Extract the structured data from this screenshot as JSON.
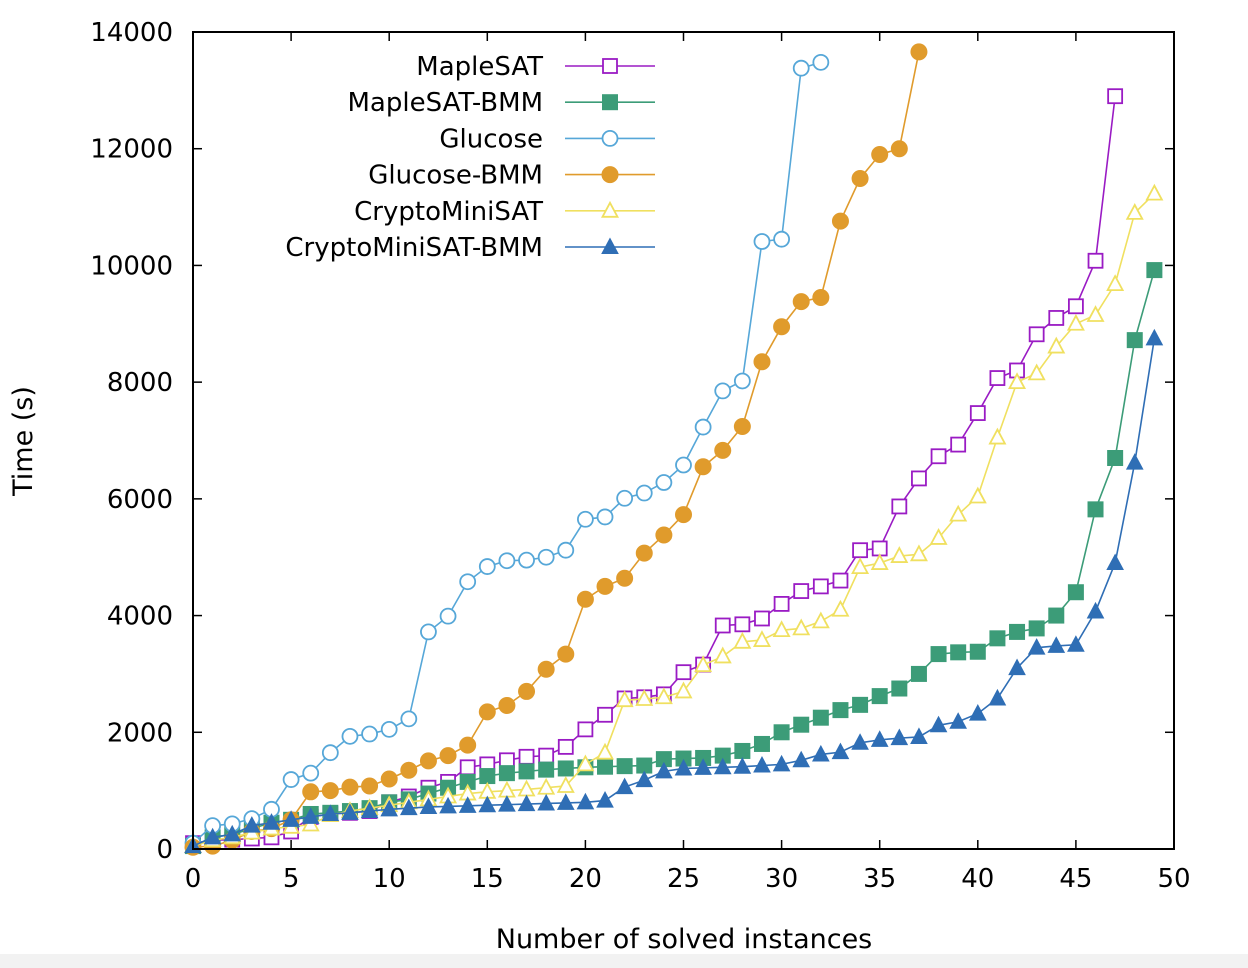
{
  "chart_data": {
    "type": "line",
    "title": "",
    "xlabel": "Number of solved instances",
    "ylabel": "Time (s)",
    "xlim": [
      0,
      50
    ],
    "ylim": [
      0,
      14000
    ],
    "xticks": [
      "0",
      "5",
      "10",
      "15",
      "20",
      "25",
      "30",
      "35",
      "40",
      "45",
      "50"
    ],
    "yticks": [
      "0",
      "2000",
      "4000",
      "6000",
      "8000",
      "10000",
      "12000",
      "14000"
    ],
    "legend_position": "top-left",
    "series": [
      {
        "name": "MapleSAT",
        "color": "#9a1bc4",
        "marker": "square-open",
        "values": [
          100,
          150,
          160,
          180,
          200,
          300,
          550,
          600,
          620,
          650,
          800,
          900,
          1050,
          1150,
          1400,
          1450,
          1520,
          1580,
          1600,
          1750,
          2050,
          2300,
          2580,
          2600,
          2650,
          3030,
          3160,
          3830,
          3850,
          3950,
          4200,
          4420,
          4500,
          4600,
          5120,
          5150,
          5870,
          6350,
          6730,
          6930,
          7470,
          8070,
          8200,
          8820,
          9100,
          9300,
          10080,
          12900
        ]
      },
      {
        "name": "MapleSAT-BMM",
        "color": "#3c9c78",
        "marker": "square-filled",
        "values": [
          50,
          200,
          250,
          350,
          450,
          500,
          600,
          620,
          650,
          700,
          800,
          850,
          950,
          1050,
          1150,
          1250,
          1300,
          1330,
          1360,
          1380,
          1400,
          1410,
          1420,
          1430,
          1540,
          1550,
          1560,
          1600,
          1680,
          1800,
          2000,
          2130,
          2250,
          2380,
          2470,
          2620,
          2750,
          3000,
          3340,
          3370,
          3380,
          3610,
          3720,
          3780,
          4000,
          4400,
          5820,
          6700,
          8720,
          9920
        ]
      },
      {
        "name": "Glucose",
        "color": "#56a7d8",
        "marker": "circle-open",
        "values": [
          100,
          400,
          430,
          520,
          680,
          1190,
          1300,
          1650,
          1930,
          1970,
          2050,
          2230,
          3720,
          3990,
          4580,
          4840,
          4940,
          4950,
          5000,
          5120,
          5650,
          5690,
          6010,
          6100,
          6280,
          6580,
          7230,
          7850,
          8020,
          10410,
          10450,
          13380,
          13480
        ]
      },
      {
        "name": "Glucose-BMM",
        "color": "#e09b2c",
        "marker": "circle-filled",
        "values": [
          30,
          50,
          150,
          300,
          350,
          500,
          980,
          1000,
          1060,
          1080,
          1200,
          1350,
          1510,
          1600,
          1780,
          2350,
          2460,
          2700,
          3080,
          3340,
          4280,
          4500,
          4640,
          5070,
          5380,
          5730,
          6550,
          6830,
          7240,
          8350,
          8950,
          9380,
          9450,
          10760,
          11490,
          11900,
          12000,
          13660
        ]
      },
      {
        "name": "CryptoMiniSAT",
        "color": "#f0e060",
        "marker": "triangle-open",
        "values": [
          50,
          150,
          200,
          280,
          350,
          380,
          420,
          580,
          650,
          700,
          750,
          800,
          850,
          900,
          950,
          980,
          1000,
          1020,
          1050,
          1080,
          1450,
          1650,
          2550,
          2570,
          2600,
          2700,
          3150,
          3300,
          3550,
          3580,
          3750,
          3780,
          3900,
          4100,
          4830,
          4900,
          5020,
          5050,
          5330,
          5730,
          6040,
          7050,
          8000,
          8150,
          8610,
          9000,
          9150,
          9680,
          10900,
          11230
        ]
      },
      {
        "name": "CryptoMiniSAT-BMM",
        "color": "#2f6eb5",
        "marker": "triangle-filled",
        "values": [
          50,
          200,
          250,
          400,
          450,
          500,
          550,
          600,
          620,
          650,
          680,
          700,
          720,
          730,
          740,
          750,
          760,
          770,
          780,
          790,
          800,
          830,
          1060,
          1180,
          1330,
          1380,
          1390,
          1400,
          1410,
          1430,
          1450,
          1520,
          1620,
          1660,
          1820,
          1870,
          1900,
          1920,
          2120,
          2180,
          2320,
          2580,
          3100,
          3450,
          3480,
          3500,
          4070,
          4900,
          6620,
          8750
        ]
      }
    ]
  }
}
